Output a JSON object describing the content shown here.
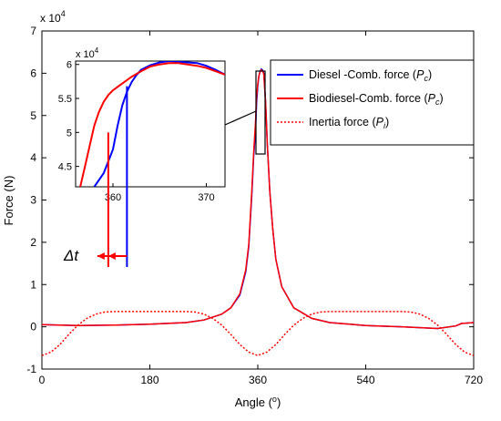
{
  "chart_data": {
    "type": "line",
    "xlabel": "Angle (o)",
    "xlabel_parts": {
      "main": "Angle (",
      "sup": "o",
      "close": ")"
    },
    "ylabel": "Force (N)",
    "y_multiplier": {
      "base": "x 10",
      "exp": "4"
    },
    "xlim": [
      0,
      720
    ],
    "ylim": [
      -1,
      7
    ],
    "x_ticks": [
      0,
      180,
      360,
      540,
      720
    ],
    "y_ticks": [
      -1,
      0,
      1,
      2,
      3,
      4,
      5,
      6,
      7
    ],
    "grid": false,
    "legend_position": "top-right",
    "legend": [
      {
        "text": "Diesel     -Comb. force (",
        "var": "P",
        "sub": "c",
        "close": ")",
        "color": "#0000ff",
        "dash": "solid"
      },
      {
        "text": "Biodiesel-Comb. force (",
        "var": "P",
        "sub": "c",
        "close": ")",
        "color": "#ff0000",
        "dash": "solid"
      },
      {
        "text": "Inertia force   (",
        "var": "P",
        "sub": "i",
        "close": ")",
        "color": "#ff0000",
        "dash": "dotted"
      }
    ],
    "series": [
      {
        "name": "Diesel -Comb. force (Pc)",
        "color": "#0000ff",
        "style": "solid",
        "x": [
          0,
          60,
          120,
          180,
          240,
          270,
          300,
          315,
          330,
          340,
          345,
          350,
          353,
          356,
          358,
          360,
          362,
          364,
          366,
          368,
          370,
          373,
          376,
          380,
          385,
          390,
          400,
          420,
          450,
          480,
          540,
          600,
          660,
          690,
          700,
          720
        ],
        "y": [
          0.05,
          0.03,
          0.04,
          0.06,
          0.1,
          0.16,
          0.3,
          0.45,
          0.75,
          1.3,
          1.9,
          3.1,
          4.0,
          4.6,
          5.3,
          5.7,
          5.95,
          6.05,
          6.1,
          6.07,
          6.0,
          5.3,
          4.3,
          3.2,
          2.3,
          1.6,
          0.95,
          0.45,
          0.2,
          0.1,
          0.03,
          0.0,
          -0.04,
          0.02,
          0.08,
          0.1
        ]
      },
      {
        "name": "Biodiesel-Comb. force (Pc)",
        "color": "#ff0000",
        "style": "solid",
        "x": [
          0,
          60,
          120,
          180,
          240,
          270,
          300,
          315,
          330,
          340,
          345,
          350,
          353,
          356,
          358,
          360,
          362,
          364,
          366,
          368,
          370,
          373,
          376,
          380,
          385,
          390,
          400,
          420,
          450,
          480,
          540,
          600,
          660,
          690,
          700,
          720
        ],
        "y": [
          0.05,
          0.03,
          0.04,
          0.06,
          0.1,
          0.16,
          0.3,
          0.45,
          0.78,
          1.35,
          1.95,
          3.2,
          4.1,
          4.8,
          5.45,
          5.75,
          5.95,
          6.03,
          6.08,
          6.05,
          5.98,
          5.3,
          4.3,
          3.2,
          2.3,
          1.6,
          0.95,
          0.45,
          0.2,
          0.1,
          0.03,
          0.0,
          -0.04,
          0.02,
          0.08,
          0.1
        ]
      },
      {
        "name": "Inertia force (Pi)",
        "color": "#ff0000",
        "style": "dotted",
        "x": [
          0,
          15,
          30,
          45,
          60,
          75,
          90,
          105,
          120,
          135,
          150,
          165,
          180,
          195,
          210,
          225,
          240,
          255,
          270,
          285,
          300,
          315,
          330,
          345,
          360,
          375,
          390,
          405,
          420,
          435,
          450,
          465,
          480,
          495,
          510,
          525,
          540,
          555,
          570,
          585,
          600,
          615,
          630,
          645,
          660,
          675,
          690,
          705,
          720
        ],
        "y": [
          -0.68,
          -0.6,
          -0.42,
          -0.18,
          0.04,
          0.2,
          0.3,
          0.35,
          0.36,
          0.36,
          0.36,
          0.36,
          0.36,
          0.36,
          0.36,
          0.36,
          0.36,
          0.35,
          0.3,
          0.2,
          0.04,
          -0.18,
          -0.42,
          -0.6,
          -0.68,
          -0.6,
          -0.42,
          -0.18,
          0.04,
          0.2,
          0.3,
          0.35,
          0.36,
          0.36,
          0.36,
          0.36,
          0.36,
          0.36,
          0.36,
          0.36,
          0.36,
          0.35,
          0.3,
          0.2,
          0.04,
          -0.18,
          -0.42,
          -0.6,
          -0.68
        ]
      }
    ],
    "inset": {
      "xlim": [
        356,
        372
      ],
      "ylim": [
        4.2,
        6.05
      ],
      "x_ticks": [
        360,
        370
      ],
      "y_ticks": [
        4.5,
        5,
        5.5,
        6
      ],
      "y_multiplier": {
        "base": "x 10",
        "exp": "4"
      },
      "series": [
        {
          "color": "#0000ff",
          "x": [
            358,
            359,
            360,
            360.5,
            361,
            361.5,
            362,
            362.5,
            363,
            364,
            365,
            366,
            367,
            368,
            369,
            370,
            371,
            372
          ],
          "y": [
            4.2,
            4.4,
            4.75,
            5.1,
            5.4,
            5.6,
            5.74,
            5.84,
            5.92,
            5.99,
            6.03,
            6.05,
            6.04,
            6.03,
            6.02,
            5.98,
            5.92,
            5.85
          ]
        },
        {
          "color": "#ff0000",
          "x": [
            356.5,
            357,
            357.5,
            358,
            358.5,
            359,
            359.5,
            360,
            361,
            362,
            363,
            364,
            365,
            366,
            367,
            368,
            369,
            370,
            371,
            372
          ],
          "y": [
            4.2,
            4.5,
            4.8,
            5.1,
            5.3,
            5.45,
            5.55,
            5.62,
            5.72,
            5.82,
            5.9,
            5.97,
            6.0,
            6.02,
            6.02,
            6.0,
            5.98,
            5.95,
            5.9,
            5.85
          ]
        }
      ]
    },
    "annotations": {
      "delta_t": {
        "main": "Δ",
        "var": "t"
      },
      "marker_red_x": 359.5,
      "marker_blue_x": 361.5
    }
  }
}
